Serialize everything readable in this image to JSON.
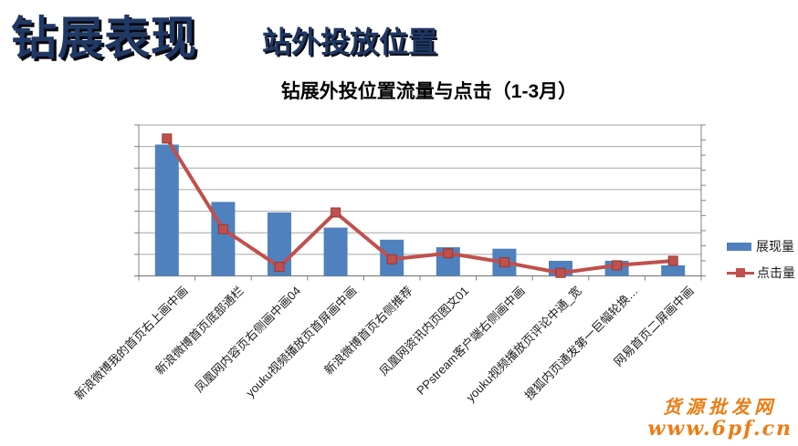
{
  "header": {
    "title": "钻展表现",
    "subtitle": "站外投放位置",
    "title_color": "#1F3864"
  },
  "chart": {
    "title": "钻展外投位置流量与点击（1-3月）",
    "legend": [
      {
        "label": "展现量",
        "type": "bar",
        "color": "#4E81BD"
      },
      {
        "label": "点击量",
        "type": "line",
        "color": "#C0504D"
      }
    ]
  },
  "chart_data": {
    "type": "bar",
    "title": "钻展外投位置流量与点击（1-3月）",
    "xlabel": "",
    "ylabel": "",
    "yaxis_labels_visible": false,
    "value_scale_note": "y axes are unlabeled; values estimated as percent of plot height (top gridline = 100)",
    "ylim": [
      0,
      100
    ],
    "grid": true,
    "gridline_intervals": 7,
    "right_axis_tick_intervals": 10,
    "legend_position": "right",
    "categories": [
      "新浪微博我的首页右上画中画",
      "新浪微博首页底部通栏",
      "凤凰网内容页右侧画中画04",
      "youku视频播放页首屏画中画",
      "新浪微博首页右侧推荐",
      "凤凰网资讯内页图文01",
      "PPstream客户端右侧画中画",
      "youku视频播放页评论中通_宽",
      "搜狐内页通发第一巨幅轮换…",
      "网易首页二屏画中画"
    ],
    "series": [
      {
        "name": "展现量",
        "type": "bar",
        "color": "#4E81BD",
        "values_pct": [
          87,
          49,
          42,
          32,
          24,
          19,
          18,
          10,
          10,
          7
        ]
      },
      {
        "name": "点击量",
        "type": "line",
        "color": "#C0504D",
        "marker": "square",
        "values_pct": [
          91,
          31,
          6,
          42,
          11,
          15,
          9,
          2,
          7,
          10
        ]
      }
    ],
    "colors": {
      "gridline": "#A6A6A6",
      "axis": "#808080"
    }
  },
  "watermark": {
    "line1": "货源批发网",
    "line2": "www.6pf.cn",
    "color": "#ED7D14"
  }
}
